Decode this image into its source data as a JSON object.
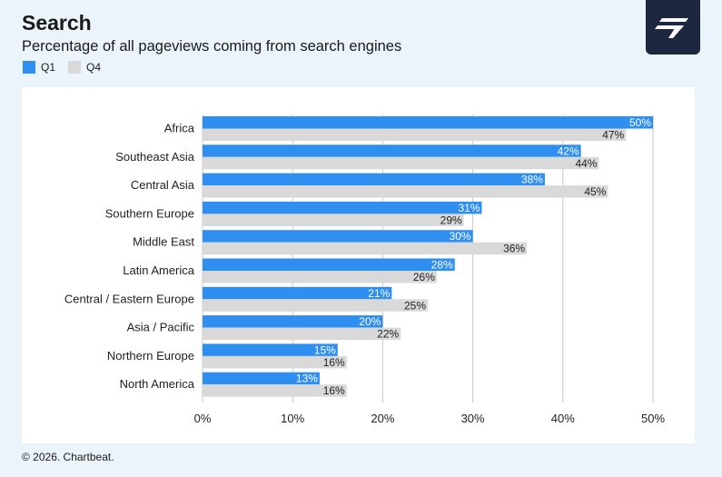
{
  "header": {
    "title": "Search",
    "subtitle": "Percentage of all pageviews coming from search engines"
  },
  "footer": {
    "copyright": "© 2026. Chartbeat."
  },
  "logo": {
    "icon": "chartbeat-logo-icon",
    "color": "#1e2740"
  },
  "colors": {
    "q1": "#2f8ff0",
    "q4": "#d9d9d9",
    "grid": "#c8c8c8"
  },
  "chart_data": {
    "type": "bar",
    "orientation": "horizontal",
    "title": "Search",
    "subtitle": "Percentage of all pageviews coming from search engines",
    "categories": [
      "Africa",
      "Southeast Asia",
      "Central Asia",
      "Southern Europe",
      "Middle East",
      "Latin America",
      "Central / Eastern Europe",
      "Asia / Pacific",
      "Northern Europe",
      "North America"
    ],
    "series": [
      {
        "name": "Q1",
        "color": "#2f8ff0",
        "values": [
          50,
          42,
          38,
          31,
          30,
          28,
          21,
          20,
          15,
          13
        ],
        "labels": [
          "50%",
          "42%",
          "38%",
          "31%",
          "30%",
          "28%",
          "21%",
          "20%",
          "15%",
          "13%"
        ]
      },
      {
        "name": "Q4",
        "color": "#d9d9d9",
        "values": [
          47,
          44,
          45,
          29,
          36,
          26,
          25,
          22,
          16,
          16
        ],
        "labels": [
          "47%",
          "44%",
          "45%",
          "29%",
          "36%",
          "26%",
          "25%",
          "22%",
          "16%",
          "16%"
        ]
      }
    ],
    "xlim": [
      0,
      50
    ],
    "xticks": [
      0,
      10,
      20,
      30,
      40,
      50
    ],
    "xtick_labels": [
      "0%",
      "10%",
      "20%",
      "30%",
      "40%",
      "50%"
    ],
    "grid": true,
    "legend": "top-left"
  }
}
